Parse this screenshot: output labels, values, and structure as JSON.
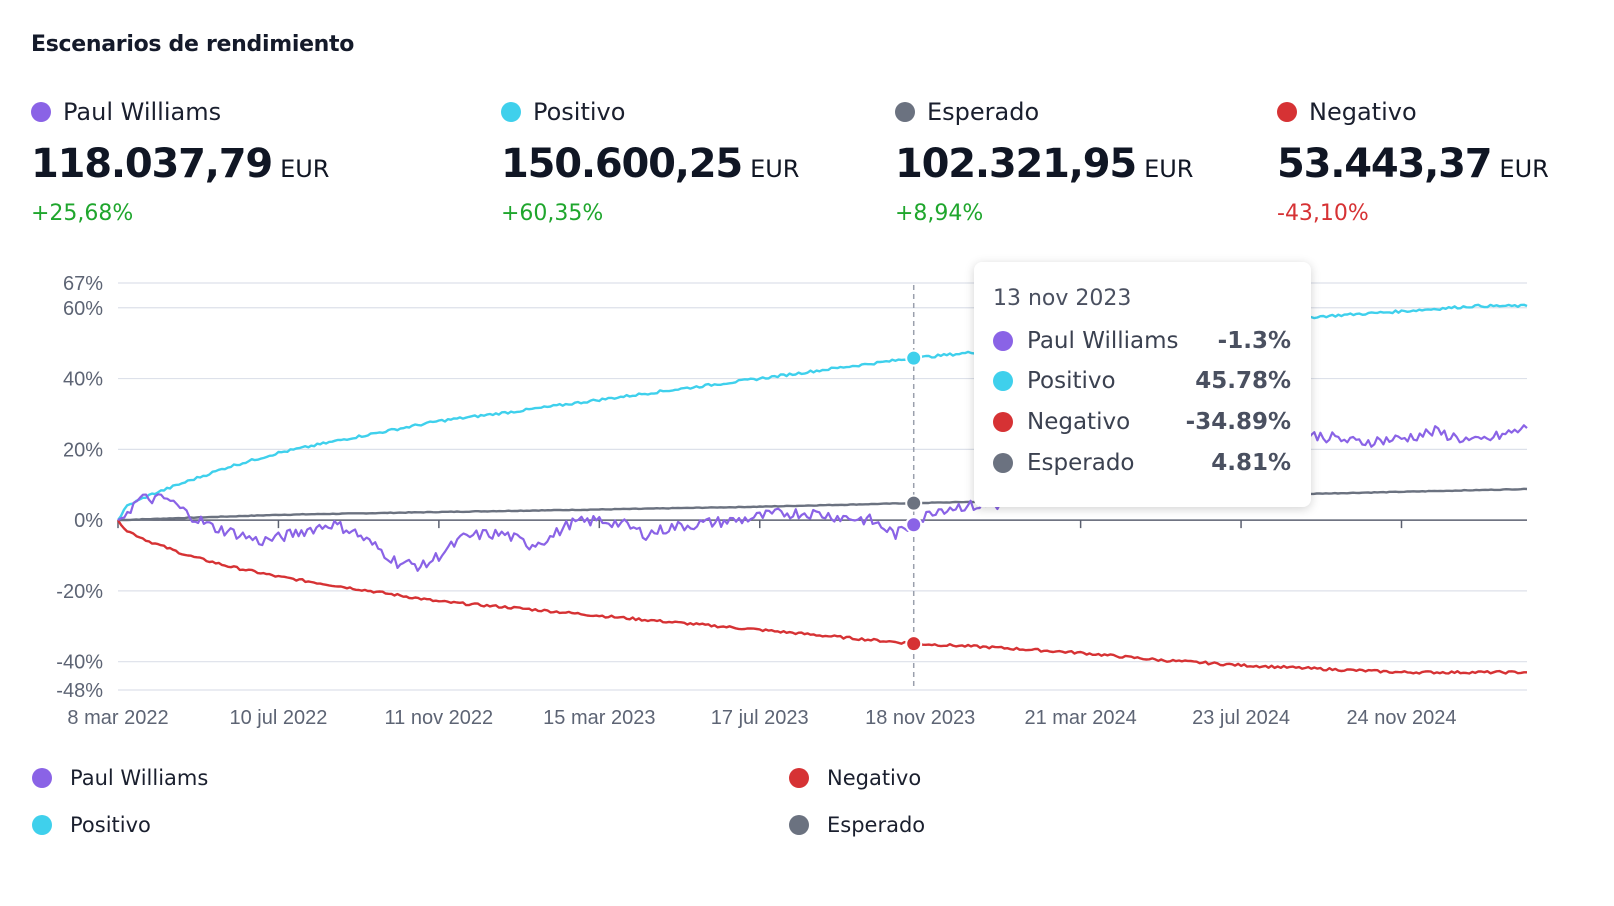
{
  "title": "Escenarios de rendimiento",
  "colors": {
    "paul": "#8a63e6",
    "positivo": "#3fd0ec",
    "negativo": "#d63234",
    "esperado": "#6b7280",
    "up": "#1fa62d",
    "down": "#d63234"
  },
  "stats": [
    {
      "name": "Paul Williams",
      "value": "118.037,79",
      "currency": "EUR",
      "change": "+25,68%",
      "color": "#8a63e6",
      "direction": "up"
    },
    {
      "name": "Positivo",
      "value": "150.600,25",
      "currency": "EUR",
      "change": "+60,35%",
      "color": "#3fd0ec",
      "direction": "up"
    },
    {
      "name": "Esperado",
      "value": "102.321,95",
      "currency": "EUR",
      "change": "+8,94%",
      "color": "#6b7280",
      "direction": "up"
    },
    {
      "name": "Negativo",
      "value": "53.443,37",
      "currency": "EUR",
      "change": "-43,10%",
      "color": "#d63234",
      "direction": "down"
    }
  ],
  "tooltip": {
    "date": "13 nov 2023",
    "rows": [
      {
        "name": "Paul Williams",
        "value": "-1.3%",
        "color": "#8a63e6"
      },
      {
        "name": "Positivo",
        "value": "45.78%",
        "color": "#3fd0ec"
      },
      {
        "name": "Negativo",
        "value": "-34.89%",
        "color": "#d63234"
      },
      {
        "name": "Esperado",
        "value": "4.81%",
        "color": "#6b7280"
      }
    ]
  },
  "legend": [
    {
      "name": "Paul Williams",
      "color": "#8a63e6"
    },
    {
      "name": "Negativo",
      "color": "#d63234"
    },
    {
      "name": "Positivo",
      "color": "#3fd0ec"
    },
    {
      "name": "Esperado",
      "color": "#6b7280"
    }
  ],
  "chart_data": {
    "type": "line",
    "x_start": "2022-03-08",
    "x_end": "2025-03-01",
    "ylim": [
      -48,
      67
    ],
    "y_ticks": [
      {
        "label": "67%",
        "value": 67
      },
      {
        "label": "60%",
        "value": 60
      },
      {
        "label": "40%",
        "value": 40
      },
      {
        "label": "20%",
        "value": 20
      },
      {
        "label": "0%",
        "value": 0
      },
      {
        "label": "-20%",
        "value": -20
      },
      {
        "label": "-40%",
        "value": -40
      },
      {
        "label": "-48%",
        "value": -48
      }
    ],
    "x_ticks": [
      {
        "label": "8 mar 2022",
        "date": "2022-03-08"
      },
      {
        "label": "10 jul 2022",
        "date": "2022-07-10"
      },
      {
        "label": "11 nov 2022",
        "date": "2022-11-11"
      },
      {
        "label": "15 mar 2023",
        "date": "2023-03-15"
      },
      {
        "label": "17 jul 2023",
        "date": "2023-07-17"
      },
      {
        "label": "18 nov 2023",
        "date": "2023-11-18"
      },
      {
        "label": "21 mar 2024",
        "date": "2024-03-21"
      },
      {
        "label": "23 jul 2024",
        "date": "2024-07-23"
      },
      {
        "label": "24 nov 2024",
        "date": "2024-11-24"
      }
    ],
    "grid": true,
    "legend_position": "bottom",
    "crosshair_date": "2023-11-13",
    "series": [
      {
        "name": "Paul Williams",
        "color": "#8a63e6",
        "points": [
          [
            "2022-03-08",
            0
          ],
          [
            "2022-03-25",
            6
          ],
          [
            "2022-04-15",
            6
          ],
          [
            "2022-04-30",
            2
          ],
          [
            "2022-05-20",
            -2
          ],
          [
            "2022-06-10",
            -4
          ],
          [
            "2022-06-25",
            -6
          ],
          [
            "2022-07-10",
            -5
          ],
          [
            "2022-07-30",
            -3
          ],
          [
            "2022-08-20",
            -1
          ],
          [
            "2022-09-05",
            -3
          ],
          [
            "2022-09-25",
            -8
          ],
          [
            "2022-10-10",
            -12
          ],
          [
            "2022-10-30",
            -13
          ],
          [
            "2022-11-11",
            -10
          ],
          [
            "2022-11-30",
            -5
          ],
          [
            "2022-12-15",
            -4
          ],
          [
            "2023-01-01",
            -4
          ],
          [
            "2023-01-20",
            -7
          ],
          [
            "2023-02-05",
            -5
          ],
          [
            "2023-02-20",
            -1
          ],
          [
            "2023-03-15",
            0
          ],
          [
            "2023-04-01",
            -1
          ],
          [
            "2023-04-20",
            -4
          ],
          [
            "2023-05-10",
            -2
          ],
          [
            "2023-06-01",
            -1
          ],
          [
            "2023-07-01",
            0
          ],
          [
            "2023-07-17",
            1
          ],
          [
            "2023-08-05",
            2
          ],
          [
            "2023-08-25",
            2
          ],
          [
            "2023-09-15",
            1
          ],
          [
            "2023-10-10",
            0
          ],
          [
            "2023-10-30",
            -4
          ],
          [
            "2023-11-13",
            -1.3
          ],
          [
            "2023-11-30",
            3
          ],
          [
            "2023-12-20",
            4
          ],
          [
            "2024-01-10",
            4
          ],
          [
            "2024-01-30",
            5
          ],
          [
            "2024-03-01",
            9
          ],
          [
            "2024-04-01",
            13
          ],
          [
            "2024-05-01",
            16
          ],
          [
            "2024-06-01",
            19
          ],
          [
            "2024-06-20",
            17
          ],
          [
            "2024-07-23",
            19
          ],
          [
            "2024-08-20",
            21
          ],
          [
            "2024-09-20",
            24
          ],
          [
            "2024-10-20",
            22
          ],
          [
            "2024-11-24",
            23
          ],
          [
            "2024-12-20",
            25
          ],
          [
            "2025-01-20",
            22
          ],
          [
            "2025-02-10",
            24
          ],
          [
            "2025-03-01",
            26
          ]
        ]
      },
      {
        "name": "Positivo",
        "color": "#3fd0ec",
        "points": [
          [
            "2022-03-08",
            0
          ],
          [
            "2022-03-15",
            4
          ],
          [
            "2022-04-01",
            7
          ],
          [
            "2022-05-01",
            11
          ],
          [
            "2022-06-01",
            15
          ],
          [
            "2022-07-10",
            19
          ],
          [
            "2022-09-01",
            23
          ],
          [
            "2022-11-11",
            28
          ],
          [
            "2023-01-15",
            31
          ],
          [
            "2023-03-15",
            34
          ],
          [
            "2023-05-15",
            37
          ],
          [
            "2023-07-17",
            40
          ],
          [
            "2023-09-15",
            43
          ],
          [
            "2023-11-13",
            45.78
          ],
          [
            "2024-01-15",
            48
          ],
          [
            "2024-03-21",
            51
          ],
          [
            "2024-05-20",
            53.5
          ],
          [
            "2024-07-23",
            55.5
          ],
          [
            "2024-09-20",
            57.5
          ],
          [
            "2024-11-24",
            59
          ],
          [
            "2025-01-20",
            60.5
          ],
          [
            "2025-03-01",
            60.5
          ]
        ]
      },
      {
        "name": "Negativo",
        "color": "#d63234",
        "points": [
          [
            "2022-03-08",
            0
          ],
          [
            "2022-03-15",
            -3
          ],
          [
            "2022-04-01",
            -6
          ],
          [
            "2022-05-01",
            -10
          ],
          [
            "2022-06-01",
            -13
          ],
          [
            "2022-07-10",
            -16
          ],
          [
            "2022-09-01",
            -19
          ],
          [
            "2022-11-11",
            -23
          ],
          [
            "2023-01-15",
            -25
          ],
          [
            "2023-03-15",
            -27
          ],
          [
            "2023-05-15",
            -29
          ],
          [
            "2023-07-17",
            -31
          ],
          [
            "2023-09-15",
            -33
          ],
          [
            "2023-11-13",
            -34.89
          ],
          [
            "2024-01-15",
            -36
          ],
          [
            "2024-03-21",
            -37.5
          ],
          [
            "2024-05-20",
            -39.5
          ],
          [
            "2024-07-23",
            -41
          ],
          [
            "2024-09-20",
            -42
          ],
          [
            "2024-11-24",
            -43
          ],
          [
            "2025-01-20",
            -43
          ],
          [
            "2025-03-01",
            -43
          ]
        ]
      },
      {
        "name": "Esperado",
        "color": "#6b7280",
        "points": [
          [
            "2022-03-08",
            0
          ],
          [
            "2022-07-10",
            1.5
          ],
          [
            "2022-11-11",
            2.3
          ],
          [
            "2023-03-15",
            3
          ],
          [
            "2023-07-17",
            3.8
          ],
          [
            "2023-11-13",
            4.81
          ],
          [
            "2024-03-21",
            5.8
          ],
          [
            "2024-07-23",
            7
          ],
          [
            "2024-11-24",
            8
          ],
          [
            "2025-03-01",
            8.8
          ]
        ]
      }
    ]
  }
}
